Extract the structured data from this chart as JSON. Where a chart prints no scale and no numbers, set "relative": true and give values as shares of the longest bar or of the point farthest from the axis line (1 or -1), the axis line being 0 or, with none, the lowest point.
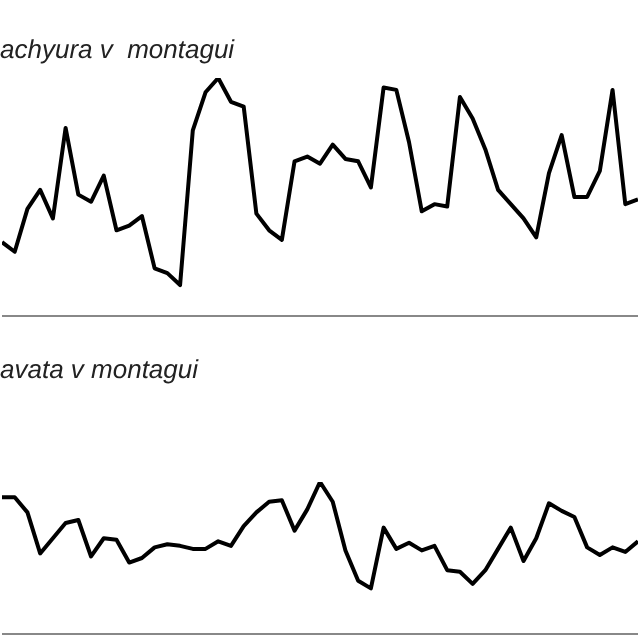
{
  "chart_data": [
    {
      "type": "line",
      "title": "achyura v  montagui",
      "relative": true,
      "color": "#000000",
      "categories": [
        null,
        null,
        null,
        null,
        null,
        null,
        null,
        null,
        null,
        null,
        null,
        null,
        null,
        null,
        null,
        null,
        null,
        null,
        null,
        null,
        null,
        null,
        null,
        null,
        null,
        null,
        null,
        null,
        null,
        null,
        null,
        null,
        null,
        null,
        null,
        null,
        null,
        null,
        null,
        null,
        null,
        null,
        null,
        null,
        null,
        null,
        null,
        null,
        null,
        null,
        null
      ],
      "values": [
        0.31,
        0.27,
        0.45,
        0.53,
        0.41,
        0.79,
        0.51,
        0.48,
        0.59,
        0.36,
        0.38,
        0.42,
        0.2,
        0.18,
        0.13,
        0.78,
        0.94,
        1,
        0.9,
        0.88,
        0.43,
        0.36,
        0.32,
        0.65,
        0.67,
        0.64,
        0.72,
        0.66,
        0.65,
        0.54,
        0.96,
        0.95,
        0.73,
        0.44,
        0.47,
        0.46,
        0.92,
        0.83,
        0.7,
        0.53,
        0.47,
        0.41,
        0.33,
        0.6,
        0.76,
        0.5,
        0.5,
        0.61,
        0.95,
        0.47,
        0.49
      ]
    },
    {
      "type": "line",
      "title": "avata v montagui",
      "relative": true,
      "color": "#000000",
      "categories": [
        null,
        null,
        null,
        null,
        null,
        null,
        null,
        null,
        null,
        null,
        null,
        null,
        null,
        null,
        null,
        null,
        null,
        null,
        null,
        null,
        null,
        null,
        null,
        null,
        null,
        null,
        null,
        null,
        null,
        null,
        null,
        null,
        null,
        null,
        null,
        null,
        null,
        null,
        null,
        null,
        null,
        null,
        null,
        null,
        null,
        null,
        null,
        null,
        null,
        null,
        null
      ],
      "values": [
        0.9,
        0.9,
        0.8,
        0.53,
        0.63,
        0.73,
        0.75,
        0.51,
        0.63,
        0.62,
        0.47,
        0.5,
        0.57,
        0.59,
        0.58,
        0.56,
        0.56,
        0.61,
        0.58,
        0.71,
        0.8,
        0.87,
        0.88,
        0.68,
        0.82,
        1,
        0.87,
        0.55,
        0.35,
        0.3,
        0.7,
        0.56,
        0.6,
        0.55,
        0.58,
        0.42,
        0.41,
        0.33,
        0.42,
        0.56,
        0.7,
        0.48,
        0.63,
        0.86,
        0.81,
        0.77,
        0.57,
        0.52,
        0.57,
        0.54,
        0.61
      ]
    }
  ]
}
